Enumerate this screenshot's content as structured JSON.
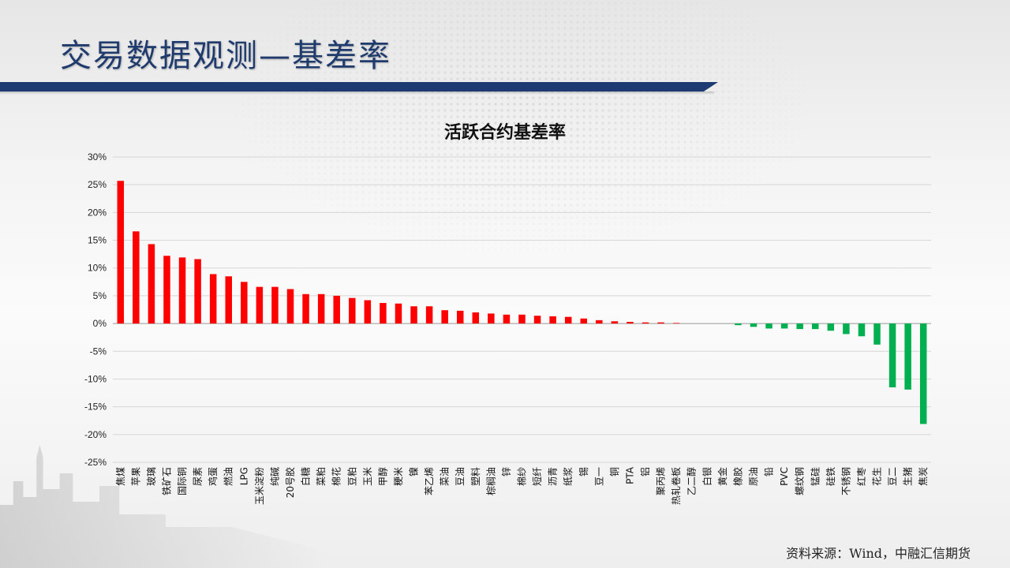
{
  "page": {
    "title": "交易数据观测—基差率"
  },
  "source": "资料来源：Wind，中融汇信期货",
  "colors": {
    "positive": "#ff0000",
    "negative": "#00b050",
    "title_bar": "#1d3a73"
  },
  "chart_data": {
    "type": "bar",
    "title": "活跃合约基差率",
    "xlabel": "",
    "ylabel": "",
    "ylim": [
      -25,
      30
    ],
    "yticks": [
      30,
      25,
      20,
      15,
      10,
      5,
      0,
      -5,
      -10,
      -15,
      -20,
      -25
    ],
    "ytick_labels": [
      "30%",
      "25%",
      "20%",
      "15%",
      "10%",
      "5%",
      "0%",
      "-5%",
      "-10%",
      "-15%",
      "-20%",
      "-25%"
    ],
    "grid": true,
    "legend": "none",
    "categories": [
      "焦煤",
      "苹果",
      "玻璃",
      "铁矿石",
      "国际铜",
      "尿素",
      "鸡蛋",
      "燃油",
      "LPG",
      "玉米淀粉",
      "纯碱",
      "20号胶",
      "白糖",
      "菜粕",
      "棉花",
      "豆粕",
      "玉米",
      "甲醇",
      "粳米",
      "镍",
      "苯乙烯",
      "菜油",
      "豆油",
      "塑料",
      "棕榈油",
      "锌",
      "棉纱",
      "短纤",
      "沥青",
      "纸浆",
      "锡",
      "豆一",
      "铜",
      "PTA",
      "铝",
      "聚丙烯",
      "热轧卷板",
      "乙二醇",
      "白银",
      "黄金",
      "橡胶",
      "原油",
      "铅",
      "PVC",
      "螺纹钢",
      "锰硅",
      "硅铁",
      "不锈钢",
      "红枣",
      "花生",
      "豆二",
      "生猪",
      "焦炭"
    ],
    "values": [
      25.7,
      16.6,
      14.3,
      12.2,
      11.9,
      11.6,
      8.9,
      8.5,
      7.5,
      6.6,
      6.6,
      6.2,
      5.3,
      5.3,
      5.0,
      4.6,
      4.2,
      3.7,
      3.6,
      3.1,
      3.1,
      2.4,
      2.3,
      2.0,
      1.8,
      1.6,
      1.6,
      1.4,
      1.3,
      1.2,
      0.9,
      0.6,
      0.4,
      0.3,
      0.2,
      0.2,
      0.1,
      0.0,
      0.0,
      0.0,
      -0.3,
      -0.6,
      -0.9,
      -0.9,
      -1.0,
      -1.0,
      -1.3,
      -1.9,
      -2.3,
      -3.8,
      -11.5,
      -11.9,
      -18.1
    ]
  }
}
